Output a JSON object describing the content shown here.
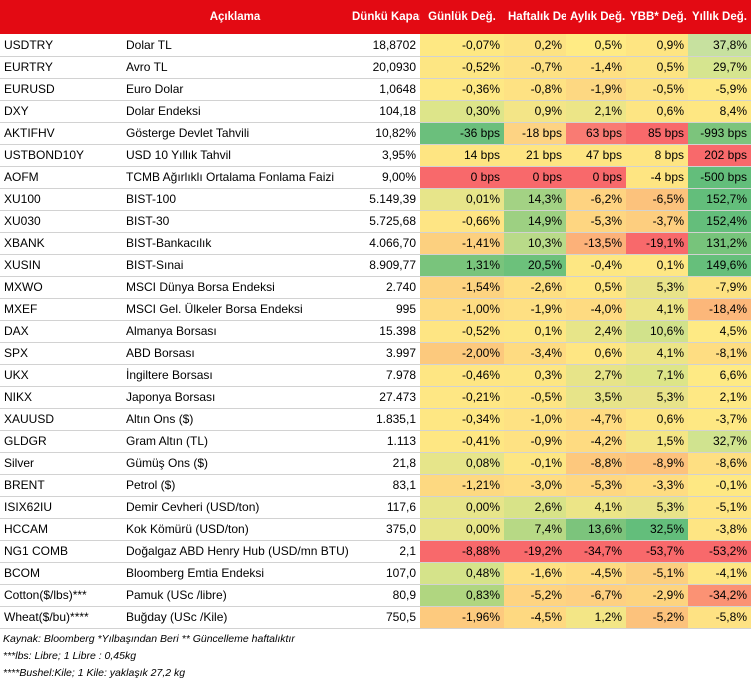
{
  "headers": {
    "code": "",
    "desc": "Açıklama",
    "close": "Dünkü Kapanış",
    "daily": "Günlük Değ.",
    "weekly": "Haftalık Değ.",
    "monthly": "Aylık Değ.",
    "ytd": "YBB* Değ.",
    "yearly": "Yıllık Değ."
  },
  "colors": {
    "header_bg": "#e30a13",
    "strong_green": "#63be7b",
    "light_green": "#c5e0a2",
    "yellow": "#ffe984",
    "orange": "#fcb179",
    "red": "#f8696b"
  },
  "rows": [
    {
      "code": "USDTRY",
      "desc": "Dolar TL",
      "close": "18,8702",
      "cells": [
        [
          "-0,07%",
          "#fee883"
        ],
        [
          "0,2%",
          "#fde383"
        ],
        [
          "0,5%",
          "#ffeb84"
        ],
        [
          "0,9%",
          "#fee582"
        ],
        [
          "37,8%",
          "#c7e19f"
        ]
      ]
    },
    {
      "code": "EURTRY",
      "desc": "Avro TL",
      "close": "20,0930",
      "cells": [
        [
          "-0,52%",
          "#fde683"
        ],
        [
          "-0,7%",
          "#fde183"
        ],
        [
          "-1,4%",
          "#fee082"
        ],
        [
          "0,5%",
          "#fce482"
        ],
        [
          "29,7%",
          "#d6e58f"
        ]
      ]
    },
    {
      "code": "EURUSD",
      "desc": "Euro Dolar",
      "close": "1,0648",
      "cells": [
        [
          "-0,36%",
          "#fee884"
        ],
        [
          "-0,8%",
          "#fee283"
        ],
        [
          "-1,9%",
          "#fdd882"
        ],
        [
          "-0,5%",
          "#fde283"
        ],
        [
          "-5,9%",
          "#fee883"
        ]
      ]
    },
    {
      "code": "DXY",
      "desc": "Dolar Endeksi",
      "close": "104,18",
      "cells": [
        [
          "0,30%",
          "#dde58a"
        ],
        [
          "0,9%",
          "#f3e587"
        ],
        [
          "2,1%",
          "#ece587"
        ],
        [
          "0,6%",
          "#fde583"
        ],
        [
          "8,4%",
          "#fee782"
        ]
      ]
    },
    {
      "code": "AKTIFHV",
      "desc": "Gösterge Devlet Tahvili",
      "close": "10,82%",
      "cells": [
        [
          "-36 bps",
          "#6bbf7c"
        ],
        [
          "-18 bps",
          "#fdd383"
        ],
        [
          "63 bps",
          "#f97b73"
        ],
        [
          "85 bps",
          "#f8696b"
        ],
        [
          "-993 bps",
          "#7cc47c"
        ]
      ]
    },
    {
      "code": "USTBOND10Y",
      "desc": "USD 10 Yıllık Tahvil",
      "close": "3,95%",
      "cells": [
        [
          "14 bps",
          "#fee582"
        ],
        [
          "21 bps",
          "#fee582"
        ],
        [
          "47 bps",
          "#fee582"
        ],
        [
          "8 bps",
          "#fee582"
        ],
        [
          "202 bps",
          "#f8696b"
        ]
      ]
    },
    {
      "code": "AOFM",
      "desc": "TCMB Ağırlıklı Ortalama Fonlama Faizi",
      "close": "9,00%",
      "cells": [
        [
          "0 bps",
          "#f8696b"
        ],
        [
          "0 bps",
          "#f8696b"
        ],
        [
          "0 bps",
          "#f8696b"
        ],
        [
          "-4 bps",
          "#fee582"
        ],
        [
          "-500 bps",
          "#63be7b"
        ]
      ]
    },
    {
      "code": "XU100",
      "desc": "BIST-100",
      "close": "5.149,39",
      "cells": [
        [
          "0,01%",
          "#e7e58a"
        ],
        [
          "14,3%",
          "#a3d284"
        ],
        [
          "-6,2%",
          "#fed381"
        ],
        [
          "-6,5%",
          "#fcc27c"
        ],
        [
          "152,7%",
          "#63be7b"
        ]
      ]
    },
    {
      "code": "XU030",
      "desc": "BIST-30",
      "close": "5.725,68",
      "cells": [
        [
          "-0,66%",
          "#fee584"
        ],
        [
          "14,9%",
          "#9dd082"
        ],
        [
          "-5,3%",
          "#fed681"
        ],
        [
          "-3,7%",
          "#fdce7f"
        ],
        [
          "152,4%",
          "#64be7b"
        ]
      ]
    },
    {
      "code": "XBANK",
      "desc": "BIST-Bankacılık",
      "close": "4.066,70",
      "cells": [
        [
          "-1,41%",
          "#fcd07f"
        ],
        [
          "10,3%",
          "#b9da89"
        ],
        [
          "-13,5%",
          "#fcb179"
        ],
        [
          "-19,1%",
          "#f8696b"
        ],
        [
          "131,2%",
          "#77c47b"
        ]
      ]
    },
    {
      "code": "XUSIN",
      "desc": "BIST-Sınai",
      "close": "8.909,77",
      "cells": [
        [
          "1,31%",
          "#79c47c"
        ],
        [
          "20,5%",
          "#6cc17b"
        ],
        [
          "-0,4%",
          "#fde783"
        ],
        [
          "0,1%",
          "#fee784"
        ],
        [
          "149,6%",
          "#66bf7b"
        ]
      ]
    },
    {
      "code": "MXWO",
      "desc": "MSCI Dünya Borsa Endeksi",
      "close": "2.740",
      "cells": [
        [
          "-1,54%",
          "#fdd380"
        ],
        [
          "-2,6%",
          "#fedf82"
        ],
        [
          "0,5%",
          "#fee683"
        ],
        [
          "5,3%",
          "#e8e389"
        ],
        [
          "-7,9%",
          "#fde281"
        ]
      ]
    },
    {
      "code": "MXEF",
      "desc": "MSCI Gel. Ülkeler Borsa Endeksi",
      "close": "995",
      "cells": [
        [
          "-1,00%",
          "#fedc82"
        ],
        [
          "-1,9%",
          "#fee083"
        ],
        [
          "-4,0%",
          "#fedb81"
        ],
        [
          "4,1%",
          "#ece587"
        ],
        [
          "-18,4%",
          "#fcb77a"
        ]
      ]
    },
    {
      "code": "DAX",
      "desc": "Almanya Borsası",
      "close": "15.398",
      "cells": [
        [
          "-0,52%",
          "#fee583"
        ],
        [
          "0,1%",
          "#fde783"
        ],
        [
          "2,4%",
          "#e7e589"
        ],
        [
          "10,6%",
          "#d1e28b"
        ],
        [
          "4,5%",
          "#feea84"
        ]
      ]
    },
    {
      "code": "SPX",
      "desc": "ABD Borsası",
      "close": "3.997",
      "cells": [
        [
          "-2,00%",
          "#fcc97d"
        ],
        [
          "-3,4%",
          "#fedb81"
        ],
        [
          "0,6%",
          "#fee683"
        ],
        [
          "4,1%",
          "#ece587"
        ],
        [
          "-8,1%",
          "#fedd82"
        ]
      ]
    },
    {
      "code": "UKX",
      "desc": "İngiltere Borsası",
      "close": "7.978",
      "cells": [
        [
          "-0,46%",
          "#fee683"
        ],
        [
          "0,3%",
          "#fde683"
        ],
        [
          "2,7%",
          "#e7e489"
        ],
        [
          "7,1%",
          "#dde588"
        ],
        [
          "6,6%",
          "#feea84"
        ]
      ]
    },
    {
      "code": "NIKX",
      "desc": "Japonya Borsası",
      "close": "27.473",
      "cells": [
        [
          "-0,21%",
          "#fee784"
        ],
        [
          "-0,5%",
          "#fde583"
        ],
        [
          "3,5%",
          "#e7e489"
        ],
        [
          "5,3%",
          "#e8e389"
        ],
        [
          "2,1%",
          "#fee884"
        ]
      ]
    },
    {
      "code": "XAUUSD",
      "desc": "Altın Ons ($)",
      "close": "1.835,1",
      "cells": [
        [
          "-0,34%",
          "#fee783"
        ],
        [
          "-1,0%",
          "#fee283"
        ],
        [
          "-4,7%",
          "#fedb81"
        ],
        [
          "0,6%",
          "#fde583"
        ],
        [
          "-3,7%",
          "#fee883"
        ]
      ]
    },
    {
      "code": "GLDGR",
      "desc": "Gram Altın (TL)",
      "close": "1.113",
      "cells": [
        [
          "-0,41%",
          "#fee783"
        ],
        [
          "-0,9%",
          "#fee283"
        ],
        [
          "-4,2%",
          "#fedb81"
        ],
        [
          "1,5%",
          "#f4e685"
        ],
        [
          "32,7%",
          "#d0e38f"
        ]
      ]
    },
    {
      "code": "Silver",
      "desc": "Gümüş Ons ($)",
      "close": "21,8",
      "cells": [
        [
          "0,08%",
          "#e6e58a"
        ],
        [
          "-0,1%",
          "#fde683"
        ],
        [
          "-8,8%",
          "#fdc87d"
        ],
        [
          "-8,9%",
          "#fdc27c"
        ],
        [
          "-8,6%",
          "#fedf82"
        ]
      ]
    },
    {
      "code": "BRENT",
      "desc": "Petrol ($)",
      "close": "83,1",
      "cells": [
        [
          "-1,21%",
          "#fdd981"
        ],
        [
          "-3,0%",
          "#fedd82"
        ],
        [
          "-5,3%",
          "#fed781"
        ],
        [
          "-3,3%",
          "#fedc81"
        ],
        [
          "-0,1%",
          "#fee883"
        ]
      ]
    },
    {
      "code": "ISIX62IU",
      "desc": "Demir Cevheri (USD/ton)",
      "close": "117,6",
      "cells": [
        [
          "0,00%",
          "#e7e58a"
        ],
        [
          "2,6%",
          "#d8e388"
        ],
        [
          "4,1%",
          "#ece587"
        ],
        [
          "5,3%",
          "#e8e389"
        ],
        [
          "-5,1%",
          "#fee583"
        ]
      ]
    },
    {
      "code": "HCCAM",
      "desc": "Kok Kömürü (USD/ton)",
      "close": "375,0",
      "cells": [
        [
          "0,00%",
          "#e7e58a"
        ],
        [
          "7,4%",
          "#b7d985"
        ],
        [
          "13,6%",
          "#7cc47c"
        ],
        [
          "32,5%",
          "#63be7b"
        ],
        [
          "-3,8%",
          "#fee583"
        ]
      ]
    },
    {
      "code": "NG1 COMB",
      "desc": "Doğalgaz ABD Henry Hub (USD/mn BTU)",
      "close": "2,1",
      "cells": [
        [
          "-8,88%",
          "#f8696b"
        ],
        [
          "-19,2%",
          "#f8696b"
        ],
        [
          "-34,7%",
          "#f8696b"
        ],
        [
          "-53,7%",
          "#f8696b"
        ],
        [
          "-53,2%",
          "#f8696b"
        ]
      ]
    },
    {
      "code": "BCOM",
      "desc": "Bloomberg Emtia Endeksi",
      "close": "107,0",
      "cells": [
        [
          "0,48%",
          "#d5e38a"
        ],
        [
          "-1,6%",
          "#fee083"
        ],
        [
          "-4,5%",
          "#fedb81"
        ],
        [
          "-5,1%",
          "#fccf7f"
        ],
        [
          "-4,1%",
          "#fee683"
        ]
      ]
    },
    {
      "code": "Cotton($/lbs)***",
      "desc": "Pamuk (USc /libre)",
      "close": "80,9",
      "cells": [
        [
          "0,83%",
          "#b0d680"
        ],
        [
          "-5,2%",
          "#fed481"
        ],
        [
          "-6,7%",
          "#fed081"
        ],
        [
          "-2,9%",
          "#fdd47f"
        ],
        [
          "-34,2%",
          "#fb9274"
        ]
      ]
    },
    {
      "code": "Wheat($/bu)****",
      "desc": "Buğday (USc /Kile)",
      "close": "750,5",
      "cells": [
        [
          "-1,96%",
          "#fdca7e"
        ],
        [
          "-4,5%",
          "#fed981"
        ],
        [
          "1,2%",
          "#f3e686"
        ],
        [
          "-5,2%",
          "#fcc27c"
        ],
        [
          "-5,8%",
          "#fee283"
        ]
      ]
    }
  ],
  "notes": [
    "Kaynak: Bloomberg *Yılbaşından Beri  ** Güncelleme haftalıktır",
    "***lbs: Libre; 1 Libre : 0,45kg",
    "****Bushel:Kile; 1 Kile: yaklaşık 27,2 kg"
  ]
}
